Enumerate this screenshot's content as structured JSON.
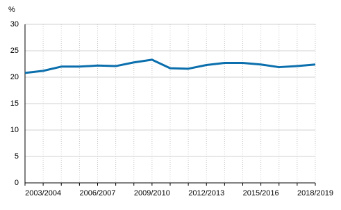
{
  "chart_data": {
    "type": "line",
    "y_label": "%",
    "categories": [
      null,
      "2003/2004",
      null,
      null,
      "2006/2007",
      null,
      null,
      "2009/2010",
      null,
      null,
      "2012/2013",
      null,
      null,
      "2015/2016",
      null,
      null,
      "2018/2019"
    ],
    "series": [
      {
        "color": "#0b6fad",
        "values": [
          20.8,
          21.2,
          22.0,
          22.0,
          22.2,
          22.1,
          22.8,
          23.3,
          21.7,
          21.6,
          22.3,
          22.7,
          22.7,
          22.4,
          21.9,
          22.1,
          22.4
        ]
      }
    ],
    "ylim": [
      0,
      30
    ],
    "yticks": [
      0,
      5,
      10,
      15,
      20,
      25,
      30
    ],
    "grid": true
  }
}
